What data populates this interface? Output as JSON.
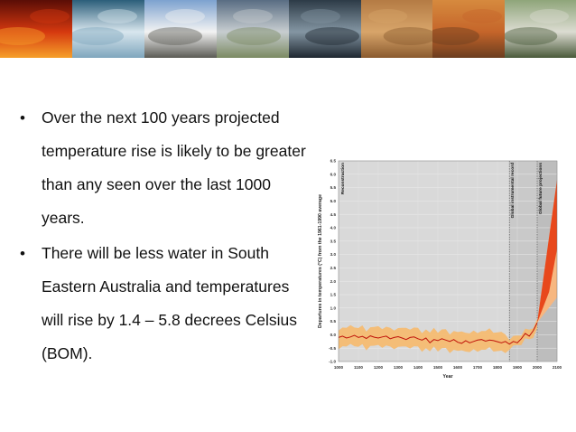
{
  "banner": {
    "tiles": [
      {
        "name": "bushfire-photo",
        "colors": [
          "#5a0d06",
          "#d5380f",
          "#f6a02a"
        ]
      },
      {
        "name": "cyclone-satellite-photo",
        "colors": [
          "#2b5e7a",
          "#d8e6ee",
          "#7fa6bd"
        ]
      },
      {
        "name": "snowy-trees-photo",
        "colors": [
          "#7da2cf",
          "#f3f3f3",
          "#5b5b55"
        ]
      },
      {
        "name": "rainbow-photo",
        "colors": [
          "#596d83",
          "#c7cdd0",
          "#7b8a62"
        ]
      },
      {
        "name": "harbour-bridge-storm-photo",
        "colors": [
          "#2d3b47",
          "#8496a3",
          "#1e2730"
        ]
      },
      {
        "name": "dust-storm-photo",
        "colors": [
          "#b47b44",
          "#d8a56a",
          "#8a5a2f"
        ]
      },
      {
        "name": "drought-carcass-photo",
        "colors": [
          "#d68a3e",
          "#c5652a",
          "#6b3d1f"
        ]
      },
      {
        "name": "flood-photo",
        "colors": [
          "#8fa57a",
          "#dcdcd2",
          "#4a5a3a"
        ]
      }
    ]
  },
  "bullets": [
    {
      "text": "Over the next 100 years projected temperature rise is likely to be greater than any seen over the last 1000 years."
    },
    {
      "text": "There will be less water in South Eastern Australia and temperatures will rise by 1.4 – 5.8 decrees Celsius (BOM)."
    }
  ],
  "chart_data": {
    "type": "line",
    "xlabel": "Year",
    "ylabel": "Departures in temperatures (°C) from the 1961-1990 average",
    "xlim": [
      1000,
      2100
    ],
    "ylim": [
      -1.0,
      6.5
    ],
    "x_ticks": [
      1000,
      1100,
      1200,
      1300,
      1400,
      1500,
      1600,
      1700,
      1800,
      1900,
      2000,
      2100
    ],
    "y_ticks": [
      "-1.0",
      "-0.5",
      "0.0",
      "0.5",
      "1.0",
      "1.5",
      "2.0",
      "2.5",
      "3.0",
      "3.5",
      "4.0",
      "4.5",
      "5.0",
      "5.5",
      "6.0",
      "6.5"
    ],
    "regions": [
      {
        "label": "Reconstruction",
        "from": 1000,
        "to": 1860
      },
      {
        "label": "Global instrumental record",
        "from": 1860,
        "to": 2000
      },
      {
        "label": "Global future projections",
        "from": 2000,
        "to": 2100
      }
    ],
    "colors": {
      "mean_line": "#c0140a",
      "uncertainty_band": "#f6b96c",
      "projection_fill": "#e8481c",
      "projection_light": "#f7b780",
      "region_bg": "#d5d5d5"
    },
    "series": [
      {
        "x": [
          1000,
          1020,
          1040,
          1060,
          1080,
          1100,
          1120,
          1140,
          1160,
          1180,
          1200,
          1220,
          1240,
          1260,
          1280,
          1300,
          1320,
          1340,
          1360,
          1380,
          1400,
          1420,
          1440,
          1460,
          1480,
          1500,
          1520,
          1540,
          1560,
          1580,
          1600,
          1620,
          1640,
          1660,
          1680,
          1700,
          1720,
          1740,
          1760,
          1780,
          1800,
          1820,
          1840,
          1860,
          1880,
          1900,
          1920,
          1940,
          1960,
          1980,
          2000
        ],
        "y": [
          -0.1,
          -0.05,
          -0.12,
          -0.08,
          -0.02,
          -0.1,
          -0.06,
          -0.14,
          -0.04,
          -0.09,
          -0.12,
          -0.08,
          -0.05,
          -0.15,
          -0.1,
          -0.07,
          -0.12,
          -0.18,
          -0.1,
          -0.08,
          -0.15,
          -0.2,
          -0.12,
          -0.3,
          -0.18,
          -0.22,
          -0.15,
          -0.2,
          -0.25,
          -0.18,
          -0.28,
          -0.32,
          -0.22,
          -0.3,
          -0.25,
          -0.2,
          -0.18,
          -0.24,
          -0.2,
          -0.22,
          -0.26,
          -0.3,
          -0.25,
          -0.35,
          -0.25,
          -0.3,
          -0.15,
          0.05,
          -0.05,
          0.15,
          0.45
        ]
      }
    ],
    "projection": {
      "year_start": 2000,
      "year_end": 2100,
      "low_end": 1.4,
      "high_end": 5.8
    }
  }
}
